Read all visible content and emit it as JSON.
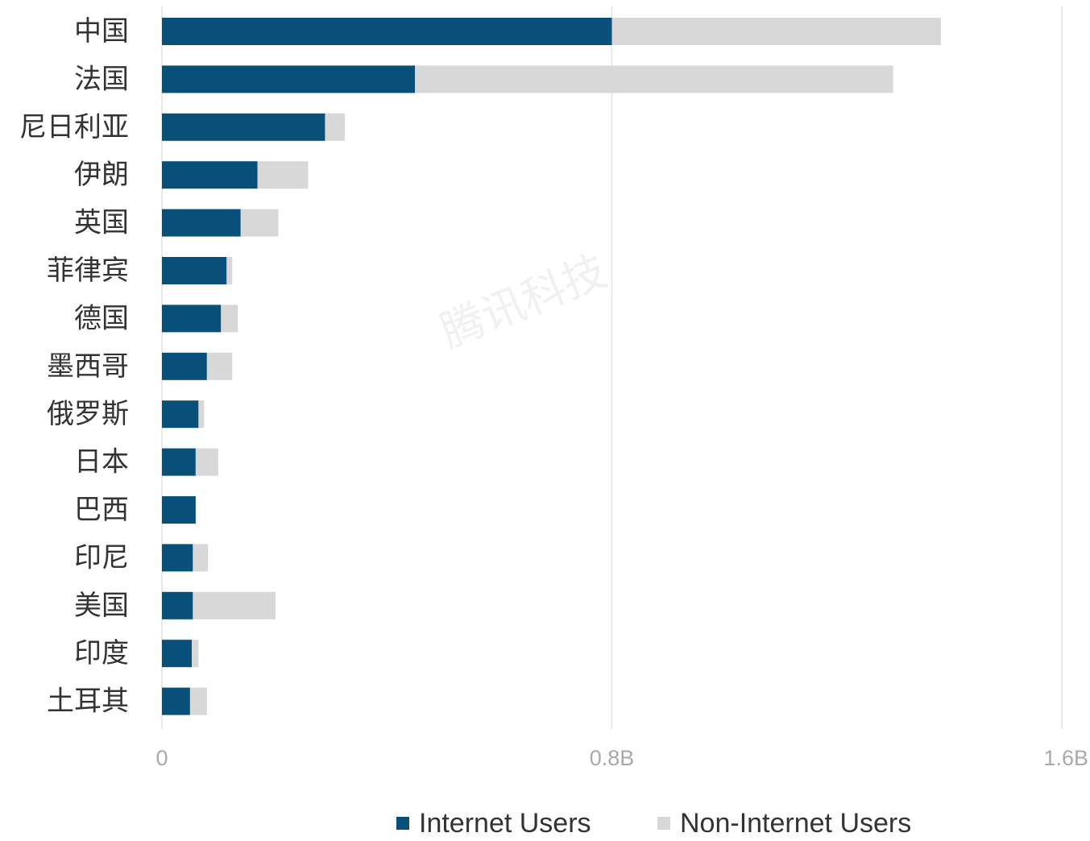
{
  "chart_data": {
    "type": "bar",
    "orientation": "horizontal",
    "stacked": true,
    "categories": [
      "中国",
      "法国",
      "尼日利亚",
      "伊朗",
      "英国",
      "菲律宾",
      "德国",
      "墨西哥",
      "俄罗斯",
      "日本",
      "巴西",
      "印尼",
      "美国",
      "印度",
      "土耳其"
    ],
    "series": [
      {
        "name": "Internet Users",
        "color": "#08507a",
        "values": [
          0.8,
          0.45,
          0.29,
          0.17,
          0.14,
          0.115,
          0.105,
          0.08,
          0.065,
          0.06,
          0.06,
          0.055,
          0.055,
          0.053,
          0.05
        ]
      },
      {
        "name": "Non-Internet Users",
        "color": "#d8d8d8",
        "values": [
          0.585,
          0.85,
          0.035,
          0.09,
          0.067,
          0.01,
          0.03,
          0.045,
          0.01,
          0.04,
          0.0,
          0.027,
          0.147,
          0.012,
          0.03
        ]
      }
    ],
    "xlim": [
      0,
      1.6
    ],
    "xticks": [
      0,
      0.8,
      1.6
    ],
    "xtick_labels": [
      "0",
      "0.8B",
      "1.6B"
    ],
    "grid": true,
    "legend_position": "bottom"
  },
  "watermark": "腾讯科技"
}
